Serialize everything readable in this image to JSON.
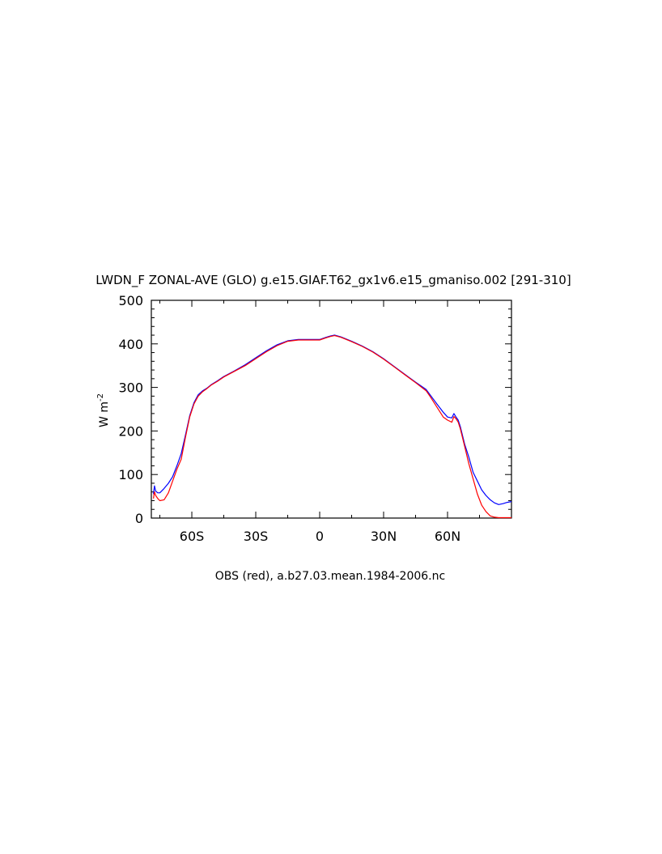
{
  "chart_data": {
    "type": "line",
    "title": "LWDN_F ZONAL-AVE (GLO) g.e15.GIAF.T62_gx1v6.e15_gmaniso.002 [291-310]",
    "xlabel": "OBS (red), a.b27.03.mean.1984-2006.nc",
    "ylabel": "W m",
    "ylabel_sup": "-2",
    "xlim": [
      -79,
      90
    ],
    "ylim": [
      0,
      500
    ],
    "x_ticks": [
      {
        "value": -60,
        "label": "60S"
      },
      {
        "value": -30,
        "label": "30S"
      },
      {
        "value": 0,
        "label": "0"
      },
      {
        "value": 30,
        "label": "30N"
      },
      {
        "value": 60,
        "label": "60N"
      }
    ],
    "y_ticks": [
      0,
      100,
      200,
      300,
      400,
      500
    ],
    "grid": false,
    "series": [
      {
        "color": "#0000ff",
        "x": [
          -78,
          -77.5,
          -77,
          -76,
          -75,
          -73,
          -71,
          -69,
          -67,
          -65,
          -63,
          -61,
          -59,
          -57,
          -55,
          -53,
          -51,
          -48,
          -45,
          -40,
          -35,
          -30,
          -25,
          -20,
          -15,
          -10,
          -5,
          0,
          3,
          5,
          7,
          10,
          15,
          20,
          25,
          30,
          35,
          40,
          45,
          50,
          52,
          55,
          58,
          60,
          62,
          63,
          64,
          65,
          66,
          68,
          70,
          72,
          74,
          76,
          78,
          80,
          82,
          84,
          86,
          88,
          90
        ],
        "y": [
          55,
          74,
          62,
          58,
          58,
          68,
          80,
          95,
          120,
          148,
          190,
          235,
          265,
          283,
          292,
          298,
          306,
          315,
          325,
          338,
          352,
          368,
          384,
          398,
          407,
          410,
          410,
          410,
          415,
          418,
          420,
          416,
          406,
          395,
          382,
          366,
          348,
          330,
          312,
          295,
          282,
          262,
          243,
          232,
          230,
          240,
          232,
          225,
          210,
          170,
          140,
          105,
          85,
          65,
          52,
          42,
          35,
          31,
          33,
          36,
          38
        ]
      },
      {
        "color": "#ff0000",
        "x": [
          -78,
          -77.5,
          -77,
          -76,
          -75,
          -73,
          -71,
          -69,
          -67,
          -65,
          -63,
          -61,
          -59,
          -57,
          -55,
          -53,
          -51,
          -48,
          -45,
          -40,
          -35,
          -30,
          -25,
          -20,
          -15,
          -10,
          -5,
          0,
          3,
          5,
          7,
          10,
          15,
          20,
          25,
          30,
          35,
          40,
          45,
          50,
          52,
          55,
          58,
          60,
          62,
          63,
          64,
          65,
          66,
          68,
          70,
          72,
          74,
          76,
          78,
          80,
          82,
          84,
          86,
          88,
          90
        ],
        "y": [
          45,
          60,
          52,
          45,
          40,
          42,
          58,
          85,
          112,
          135,
          185,
          232,
          262,
          280,
          290,
          297,
          305,
          314,
          324,
          337,
          350,
          366,
          382,
          396,
          406,
          409,
          409,
          409,
          414,
          417,
          419,
          415,
          405,
          394,
          381,
          365,
          347,
          329,
          311,
          292,
          278,
          255,
          232,
          225,
          220,
          233,
          228,
          220,
          205,
          165,
          125,
          90,
          55,
          30,
          15,
          5,
          2,
          1,
          1,
          1,
          1
        ]
      }
    ]
  }
}
